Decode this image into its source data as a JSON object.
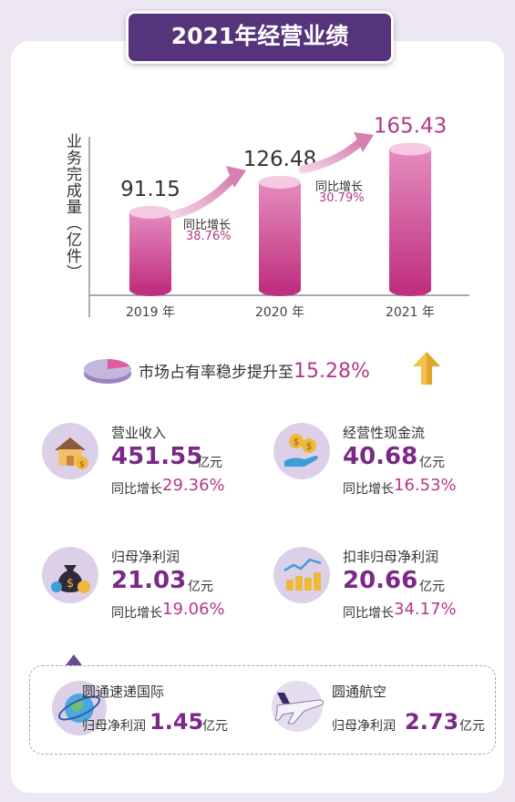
{
  "title": "2021年经营业绩",
  "chart_data": {
    "type": "bar",
    "ylabel": "业务完成量（亿件）",
    "categories": [
      "2019 年",
      "2020 年",
      "2021 年"
    ],
    "values": [
      91.15,
      126.48,
      165.43
    ],
    "value_labels": [
      "91.15",
      "126.48",
      "165.43"
    ],
    "growth_annotations": [
      {
        "label": "同比增长",
        "value": "38.76%"
      },
      {
        "label": "同比增长",
        "value": "30.79%"
      }
    ],
    "ylim": [
      0,
      180
    ]
  },
  "market_share": {
    "text": "市场占有率稳步提升至",
    "value": "15.28%",
    "icons": [
      "pie-icon",
      "up-arrow-icon"
    ]
  },
  "metrics": [
    {
      "label": "营业收入",
      "value": "451.55",
      "unit": "亿元",
      "growth_label": "同比增长",
      "growth": "29.36%",
      "icon": "house-coin-icon"
    },
    {
      "label": "经营性现金流",
      "value": "40.68",
      "unit": "亿元",
      "growth_label": "同比增长",
      "growth": "16.53%",
      "icon": "hand-coins-icon"
    },
    {
      "label": "归母净利润",
      "value": "21.03",
      "unit": "亿元",
      "growth_label": "同比增长",
      "growth": "19.06%",
      "icon": "money-bag-icon"
    },
    {
      "label": "扣非归母净利润",
      "value": "20.66",
      "unit": "亿元",
      "growth_label": "同比增长",
      "growth": "34.17%",
      "icon": "coin-chart-icon"
    }
  ],
  "subsidiaries": [
    {
      "name": "圆通速递国际",
      "prefix": "归母净利润",
      "value": "1.45",
      "unit": "亿元",
      "icon": "globe-icon"
    },
    {
      "name": "圆通航空",
      "prefix": "归母净利润",
      "value": "2.73",
      "unit": "亿元",
      "icon": "airplane-icon"
    }
  ],
  "colors": {
    "accent": "#b23a86",
    "title_bg": "#55347c",
    "bar_top": "#f5c9e2",
    "bar_bottom": "#c0307f"
  }
}
